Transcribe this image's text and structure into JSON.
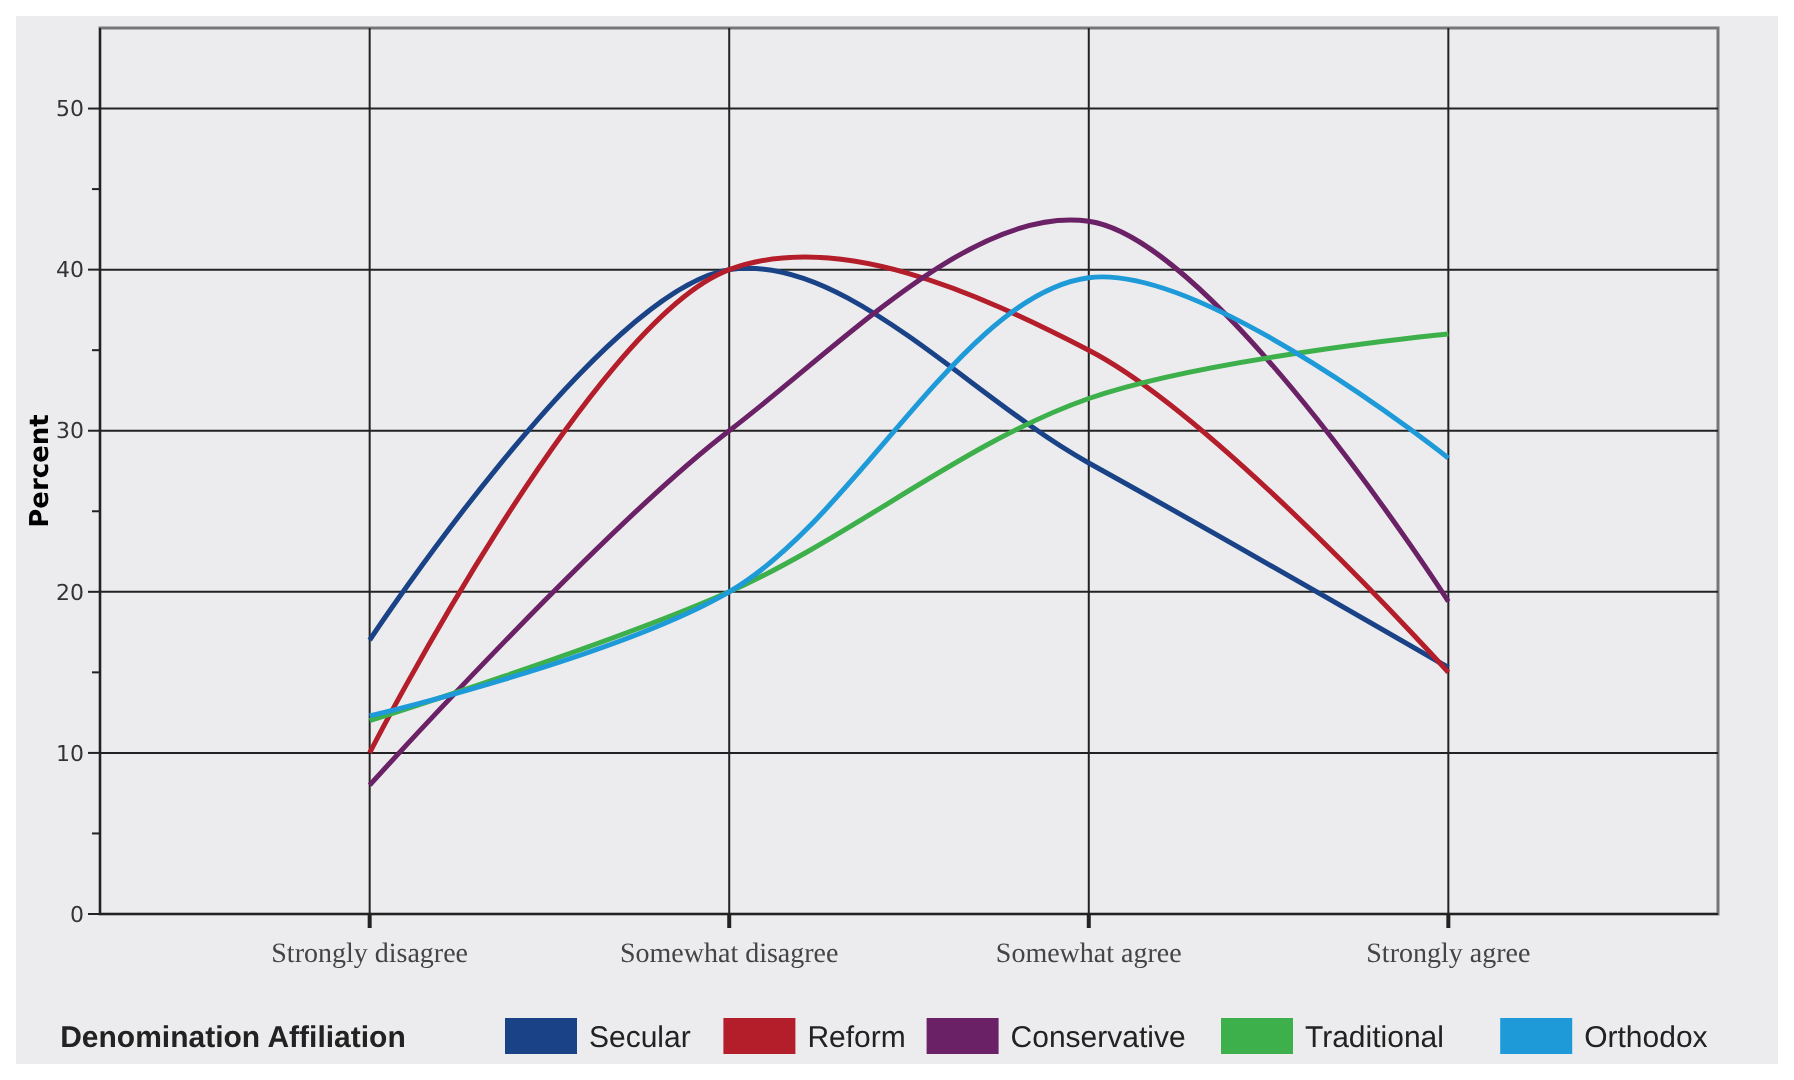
{
  "chart_data": {
    "type": "line",
    "ylabel": "Percent",
    "legend_title": "Denomination Affiliation",
    "categories": [
      "Strongly disagree",
      "Somewhat disagree",
      "Somewhat agree",
      "Strongly agree"
    ],
    "series": [
      {
        "name": "Secular",
        "color": "#1a4287",
        "values": [
          17,
          40,
          28,
          15.3
        ]
      },
      {
        "name": "Reform",
        "color": "#b31e2a",
        "values": [
          10,
          40,
          35,
          15
        ]
      },
      {
        "name": "Conservative",
        "color": "#6a2166",
        "values": [
          8,
          30,
          43,
          19.4
        ]
      },
      {
        "name": "Traditional",
        "color": "#3db04b",
        "values": [
          12,
          20,
          32,
          36
        ]
      },
      {
        "name": "Orthodox",
        "color": "#1e9ad9",
        "values": [
          12.3,
          20,
          39.5,
          28.3
        ]
      }
    ],
    "ylim": [
      0,
      55
    ],
    "yticks": [
      0,
      {
        "value": 5,
        "label": null
      },
      10,
      {
        "value": 15,
        "label": null
      },
      20,
      {
        "value": 25,
        "label": null
      },
      30,
      {
        "value": 35,
        "label": null
      },
      40,
      {
        "value": 45,
        "label": null
      },
      50
    ],
    "grid": true,
    "legend": "bottom",
    "marker": "none",
    "line_style": "solid"
  }
}
